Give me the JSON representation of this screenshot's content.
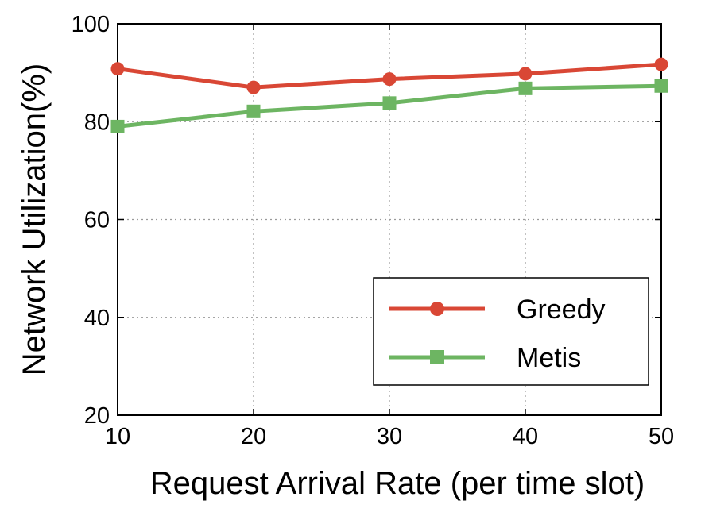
{
  "chart_data": {
    "type": "line",
    "xlabel": "Request Arrival Rate (per time slot)",
    "ylabel": "Network Utilization(%)",
    "x": [
      10,
      20,
      30,
      40,
      50
    ],
    "xlim": [
      10,
      50
    ],
    "ylim": [
      20,
      100
    ],
    "xticks": [
      "10",
      "20",
      "30",
      "40",
      "50"
    ],
    "yticks": [
      "20",
      "40",
      "60",
      "80",
      "100"
    ],
    "grid": true,
    "legend_position": "lower-right",
    "series": [
      {
        "name": "Greedy",
        "values": [
          90.8,
          87.0,
          88.7,
          89.8,
          91.7
        ],
        "color": "#d94735",
        "marker": "circle"
      },
      {
        "name": "Metis",
        "values": [
          79.0,
          82.1,
          83.8,
          86.8,
          87.3
        ],
        "color": "#6db562",
        "marker": "square"
      }
    ]
  }
}
